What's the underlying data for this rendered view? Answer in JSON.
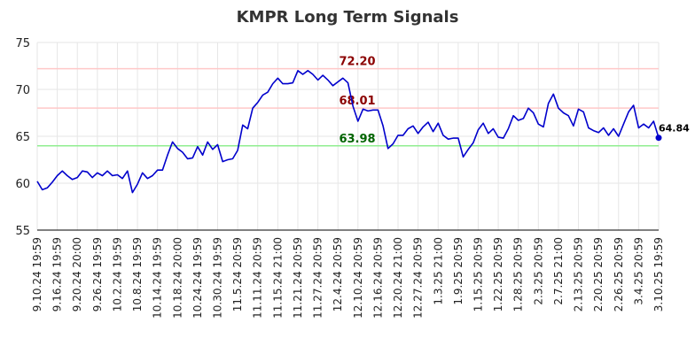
{
  "chart_data": {
    "type": "line",
    "title": "KMPR Long Term Signals",
    "xlabel": "",
    "ylabel": "",
    "ylim": [
      55,
      75
    ],
    "yticks": [
      "55",
      "60",
      "65",
      "70",
      "75"
    ],
    "grid": true,
    "x_tick_labels": [
      "9.10.24 19:59",
      "9.16.24 19:59",
      "9.20.24 20:00",
      "9.26.24 19:59",
      "10.2.24 19:59",
      "10.8.24 19:59",
      "10.14.24 19:59",
      "10.18.24 20:00",
      "10.24.24 19:59",
      "10.30.24 19:59",
      "11.5.24 20:59",
      "11.11.24 20:59",
      "11.15.24 21:00",
      "11.21.24 20:59",
      "11.27.24 20:59",
      "12.4.24 20:59",
      "12.10.24 20:59",
      "12.16.24 20:59",
      "12.20.24 21:00",
      "12.27.24 20:59",
      "1.3.25 21:00",
      "1.9.25 20:59",
      "1.15.25 20:59",
      "1.22.25 20:59",
      "1.28.25 20:59",
      "2.3.25 20:59",
      "2.7.25 21:00",
      "2.13.25 20:59",
      "2.20.25 20:59",
      "2.26.25 20:59",
      "3.4.25 20:59",
      "3.10.25 19:59"
    ],
    "levels": [
      {
        "value": 72.2,
        "label": "72.20",
        "line_color": "#ffc8c8",
        "label_color": "#8b0000"
      },
      {
        "value": 68.01,
        "label": "68.01",
        "line_color": "#ffc8c8",
        "label_color": "#8b0000"
      },
      {
        "value": 63.98,
        "label": "63.98",
        "line_color": "#90ee90",
        "label_color": "#006400"
      }
    ],
    "series": [
      {
        "color": "#0000cc",
        "values": [
          60.2,
          59.3,
          59.5,
          60.1,
          60.8,
          61.3,
          60.8,
          60.4,
          60.6,
          61.3,
          61.2,
          60.6,
          61.1,
          60.8,
          61.3,
          60.8,
          60.9,
          60.5,
          61.3,
          59.0,
          59.9,
          61.1,
          60.5,
          60.8,
          61.4,
          61.4,
          63.0,
          64.4,
          63.7,
          63.3,
          62.6,
          62.7,
          63.9,
          63.0,
          64.4,
          63.6,
          64.1,
          62.3,
          62.5,
          62.6,
          63.5,
          66.2,
          65.8,
          68.0,
          68.6,
          69.4,
          69.7,
          70.6,
          71.2,
          70.6,
          70.6,
          70.7,
          72.0,
          71.6,
          72.0,
          71.6,
          71.0,
          71.5,
          71.0,
          70.4,
          70.8,
          71.2,
          70.7,
          68.2,
          66.6,
          67.9,
          67.7,
          67.8,
          67.8,
          66.1,
          63.7,
          64.2,
          65.1,
          65.1,
          65.8,
          66.1,
          65.3,
          66.0,
          66.5,
          65.5,
          66.4,
          65.1,
          64.7,
          64.8,
          64.8,
          62.8,
          63.6,
          64.3,
          65.7,
          66.4,
          65.3,
          65.8,
          64.9,
          64.8,
          65.8,
          67.2,
          66.7,
          66.9,
          68.0,
          67.5,
          66.3,
          66.0,
          68.5,
          69.5,
          68.0,
          67.5,
          67.2,
          66.1,
          67.9,
          67.6,
          65.9,
          65.6,
          65.4,
          65.9,
          65.1,
          65.8,
          65.0,
          66.3,
          67.6,
          68.3,
          65.9,
          66.3,
          65.9,
          66.6,
          64.84
        ]
      }
    ],
    "last_value_label": "64.84"
  }
}
